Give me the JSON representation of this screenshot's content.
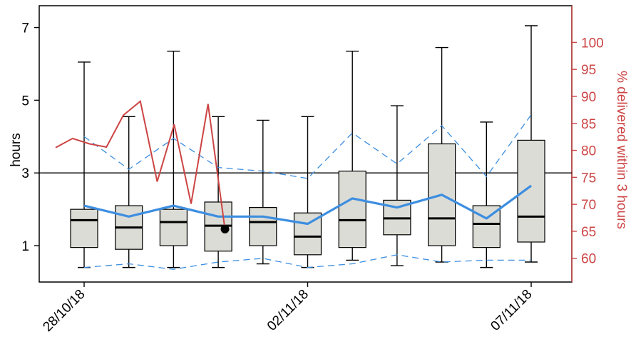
{
  "chart_data": {
    "type": "box",
    "ylabel": "hours",
    "y2label": "% delivered within 3 hours",
    "ylim": [
      0,
      7.6
    ],
    "y2lim": [
      55.6,
      106.8
    ],
    "y_ticks": [
      1,
      3,
      5,
      7
    ],
    "y2_ticks": [
      60,
      65,
      70,
      75,
      80,
      85,
      90,
      95,
      100
    ],
    "x_tick_labels": [
      "28/10/18",
      "02/11/18",
      "07/11/18"
    ],
    "reference_line_y": 3,
    "colors": {
      "box_fill": "#dcdcd6",
      "box_stroke": "#000000",
      "mean_line": "#3d8ee0",
      "band_line": "#3d8ee0",
      "percent_line": "#cc4444",
      "axis": "#000000",
      "right_axis": "#cc4444"
    },
    "boxes": [
      {
        "min": 0.4,
        "q1": 0.95,
        "median": 1.7,
        "q3": 2.0,
        "max": 6.05
      },
      {
        "min": 0.4,
        "q1": 0.9,
        "median": 1.5,
        "q3": 2.1,
        "max": 4.55
      },
      {
        "min": 0.4,
        "q1": 1.0,
        "median": 1.65,
        "q3": 2.0,
        "max": 6.35
      },
      {
        "min": 0.4,
        "q1": 0.85,
        "median": 1.55,
        "q3": 2.2,
        "max": 4.55
      },
      {
        "min": 0.5,
        "q1": 1.0,
        "median": 1.65,
        "q3": 2.05,
        "max": 4.45
      },
      {
        "min": 0.4,
        "q1": 0.75,
        "median": 1.25,
        "q3": 1.9,
        "max": 4.55
      },
      {
        "min": 0.6,
        "q1": 0.95,
        "median": 1.7,
        "q3": 3.05,
        "max": 6.35
      },
      {
        "min": 0.45,
        "q1": 1.3,
        "median": 1.75,
        "q3": 2.25,
        "max": 4.85
      },
      {
        "min": 0.55,
        "q1": 1.0,
        "median": 1.75,
        "q3": 3.8,
        "max": 6.45
      },
      {
        "min": 0.4,
        "q1": 0.95,
        "median": 1.6,
        "q3": 2.1,
        "max": 4.4
      },
      {
        "min": 0.55,
        "q1": 1.1,
        "median": 1.8,
        "q3": 3.9,
        "max": 7.05
      }
    ],
    "mean_series": [
      2.1,
      1.8,
      2.1,
      1.8,
      1.8,
      1.6,
      2.3,
      2.05,
      2.4,
      1.75,
      2.65
    ],
    "upper_band": [
      4.0,
      3.1,
      3.95,
      3.15,
      3.05,
      2.85,
      4.1,
      3.25,
      4.3,
      2.9,
      4.6
    ],
    "lower_band": [
      0.4,
      0.5,
      0.35,
      0.55,
      0.65,
      0.4,
      0.5,
      0.75,
      0.55,
      0.6,
      0.6
    ],
    "percent_series": [
      {
        "x": 0.0,
        "y": 80.5
      },
      {
        "x": 0.5,
        "y": 82.2
      },
      {
        "x": 1.0,
        "y": 81.2
      },
      {
        "x": 1.5,
        "y": 80.6
      },
      {
        "x": 2.0,
        "y": 86.5
      },
      {
        "x": 2.5,
        "y": 89.1
      },
      {
        "x": 3.0,
        "y": 74.2
      },
      {
        "x": 3.5,
        "y": 84.8
      },
      {
        "x": 4.0,
        "y": 70.1
      },
      {
        "x": 4.5,
        "y": 88.6
      },
      {
        "x": 5.0,
        "y": 65.4
      }
    ],
    "marker_point": {
      "x": 5.0,
      "y": 65.4
    }
  }
}
